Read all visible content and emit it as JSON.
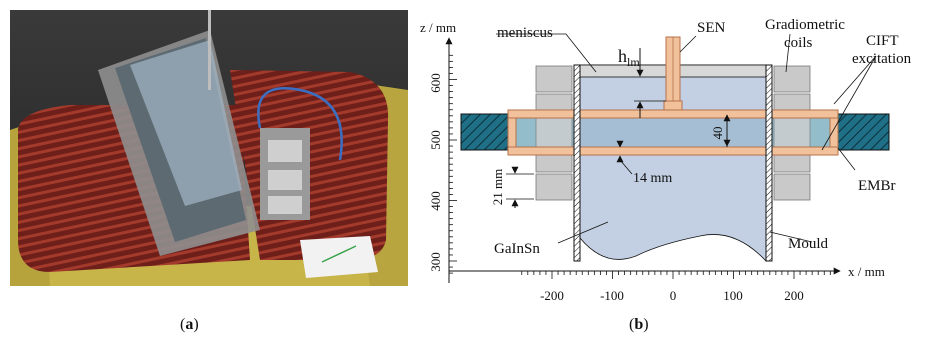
{
  "captions": {
    "a": "a",
    "b": "b"
  },
  "diagram": {
    "x_axis_label": "x / mm",
    "z_axis_label": "z / mm",
    "x_ticks": [
      "-200",
      "-100",
      "0",
      "100",
      "200"
    ],
    "z_ticks": [
      "600",
      "500",
      "400",
      "300"
    ],
    "labels": {
      "meniscus": "meniscus",
      "h": "h",
      "h_sub": "lm",
      "sen": "SEN",
      "gradiometric_1": "Gradiometric",
      "gradiometric_2": "coils",
      "cift_1": "CIFT",
      "cift_2": "excitation",
      "dim_40": "40",
      "dim_14": "14 mm",
      "dim_21": "21 mm",
      "embr": "EMBr",
      "gainsn": "GaInSn",
      "mould": "Mould"
    },
    "colors": {
      "liquid": "#c3d0e4",
      "meniscus_band": "#d8d8d8",
      "copper": "#f1c19c",
      "copper_edge": "#b5714a",
      "embr_dark": "#1f6f86",
      "embr_band": "#3a86a0",
      "coil_gray": "#c9c9c9"
    }
  }
}
